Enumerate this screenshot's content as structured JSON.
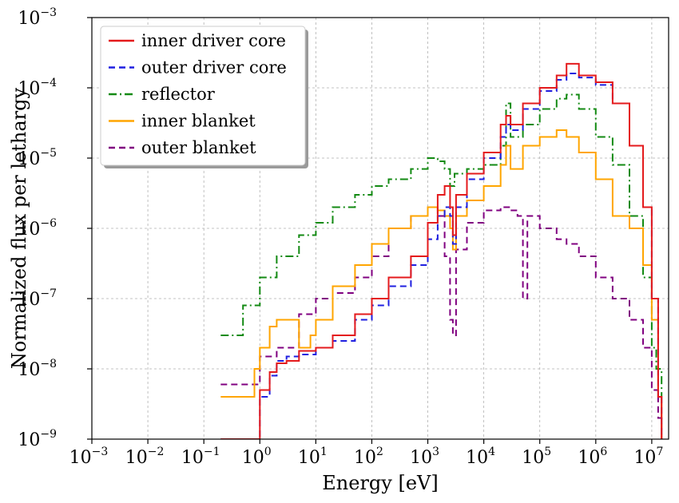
{
  "chart_data": {
    "type": "line",
    "title": "",
    "xlabel": "Energy [eV]",
    "ylabel": "Normalized flux per lethargy",
    "x_scale": "log",
    "y_scale": "log",
    "xlim": [
      0.001,
      20000000
    ],
    "ylim": [
      1e-09,
      0.001
    ],
    "grid": true,
    "legend_position": "top-left",
    "x_ticks": [
      {
        "value": 0.001,
        "base": "10",
        "exp": "−3"
      },
      {
        "value": 0.01,
        "base": "10",
        "exp": "−2"
      },
      {
        "value": 0.1,
        "base": "10",
        "exp": "−1"
      },
      {
        "value": 1,
        "base": "10",
        "exp": "0"
      },
      {
        "value": 10,
        "base": "10",
        "exp": "1"
      },
      {
        "value": 100,
        "base": "10",
        "exp": "2"
      },
      {
        "value": 1000,
        "base": "10",
        "exp": "3"
      },
      {
        "value": 10000,
        "base": "10",
        "exp": "4"
      },
      {
        "value": 100000,
        "base": "10",
        "exp": "5"
      },
      {
        "value": 1000000,
        "base": "10",
        "exp": "6"
      },
      {
        "value": 10000000,
        "base": "10",
        "exp": "7"
      }
    ],
    "y_ticks": [
      {
        "value": 1e-09,
        "base": "10",
        "exp": "−9"
      },
      {
        "value": 1e-08,
        "base": "10",
        "exp": "−8"
      },
      {
        "value": 1e-07,
        "base": "10",
        "exp": "−7"
      },
      {
        "value": 1e-06,
        "base": "10",
        "exp": "−6"
      },
      {
        "value": 1e-05,
        "base": "10",
        "exp": "−5"
      },
      {
        "value": 0.0001,
        "base": "10",
        "exp": "−4"
      },
      {
        "value": 0.001,
        "base": "10",
        "exp": "−3"
      }
    ],
    "series": [
      {
        "name": "inner driver core",
        "color": "#e41a1c",
        "dash": "solid",
        "x": [
          0.2,
          0.5,
          0.8,
          1,
          1.5,
          2,
          3,
          5,
          10,
          20,
          50,
          100,
          200,
          500,
          1000,
          1500,
          2000,
          2500,
          2800,
          3200,
          5000,
          10000,
          20000,
          25000,
          30000,
          50000,
          100000,
          200000,
          300000,
          500000,
          1000000,
          2000000,
          4000000,
          7000000,
          10000000,
          13000000,
          15000000
        ],
        "y": [
          1e-09,
          1e-09,
          1e-09,
          5e-09,
          9e-09,
          1.2e-08,
          1.3e-08,
          1.8e-08,
          2e-08,
          3e-08,
          6e-08,
          1e-07,
          2e-07,
          4e-07,
          1.2e-06,
          3e-06,
          4e-06,
          2e-06,
          8e-07,
          3e-06,
          6e-06,
          1.2e-05,
          3e-05,
          4e-05,
          3e-05,
          6e-05,
          0.0001,
          0.00015,
          0.00022,
          0.00015,
          0.00012,
          6e-05,
          1.5e-05,
          2e-06,
          1e-07,
          4e-09,
          1e-09
        ]
      },
      {
        "name": "outer driver core",
        "color": "#1f1fe0",
        "dash": "8,5",
        "x": [
          0.2,
          0.5,
          0.8,
          1,
          1.5,
          2,
          3,
          5,
          10,
          20,
          50,
          100,
          200,
          500,
          1000,
          1500,
          2000,
          2500,
          2800,
          3200,
          5000,
          10000,
          20000,
          25000,
          30000,
          50000,
          100000,
          200000,
          300000,
          500000,
          1000000,
          2000000,
          4000000,
          7000000,
          10000000,
          13000000,
          15000000
        ],
        "y": [
          1e-09,
          1e-09,
          1e-09,
          4e-09,
          8e-09,
          1.3e-08,
          1.5e-08,
          1.6e-08,
          2e-08,
          2.5e-08,
          5e-08,
          8e-08,
          1.5e-07,
          3e-07,
          7e-07,
          1.5e-06,
          2e-06,
          1.5e-06,
          6e-07,
          2e-06,
          5e-06,
          1e-05,
          2e-05,
          3e-05,
          2.5e-05,
          5e-05,
          9e-05,
          0.00013,
          0.00016,
          0.00014,
          0.00011,
          6e-05,
          1.5e-05,
          2e-06,
          1e-07,
          4e-09,
          1e-09
        ]
      },
      {
        "name": "reflector",
        "color": "#138a13",
        "dash": "10,4,2,4",
        "x": [
          0.2,
          0.3,
          0.5,
          1,
          2,
          5,
          10,
          20,
          50,
          100,
          200,
          500,
          1000,
          1500,
          2000,
          2500,
          3000,
          5000,
          10000,
          20000,
          25000,
          30000,
          50000,
          100000,
          200000,
          300000,
          500000,
          1000000,
          2000000,
          4000000,
          7000000,
          10000000,
          12000000,
          15000000
        ],
        "y": [
          3e-08,
          3e-08,
          8e-08,
          2e-07,
          4e-07,
          8e-07,
          1.2e-06,
          2e-06,
          3e-06,
          4e-06,
          5e-06,
          7e-06,
          1e-05,
          9e-06,
          7e-06,
          4e-06,
          6e-06,
          7e-06,
          8e-06,
          1.5e-05,
          6e-05,
          2e-05,
          3e-05,
          5e-05,
          7e-05,
          8e-05,
          5e-05,
          2e-05,
          8e-06,
          1.5e-06,
          2e-07,
          2e-08,
          1e-08,
          4e-09
        ]
      },
      {
        "name": "inner blanket",
        "color": "#ffa500",
        "dash": "solid",
        "x": [
          0.2,
          0.5,
          0.8,
          1,
          1.5,
          2,
          3,
          5,
          8,
          10,
          20,
          50,
          100,
          200,
          500,
          1000,
          1500,
          2000,
          2500,
          2800,
          3200,
          5000,
          10000,
          20000,
          25000,
          30000,
          50000,
          100000,
          200000,
          300000,
          500000,
          1000000,
          2000000,
          4000000,
          7000000,
          10000000,
          13000000,
          15000000
        ],
        "y": [
          4e-09,
          4e-09,
          1e-08,
          2e-08,
          4e-08,
          5e-08,
          5e-08,
          2e-08,
          3e-08,
          5e-08,
          1.5e-07,
          3e-07,
          6e-07,
          1e-06,
          1.5e-06,
          2e-06,
          1.8e-06,
          1.5e-06,
          1e-06,
          5e-07,
          1.5e-06,
          2.5e-06,
          4e-06,
          8e-06,
          1.5e-05,
          7e-06,
          1.5e-05,
          2e-05,
          2.5e-05,
          2e-05,
          1.2e-05,
          5e-06,
          1.5e-06,
          1e-06,
          3e-07,
          5e-08,
          4e-09,
          1e-09
        ]
      },
      {
        "name": "outer blanket",
        "color": "#800080",
        "dash": "8,5",
        "x": [
          0.2,
          0.5,
          1,
          2,
          5,
          10,
          20,
          50,
          100,
          200,
          500,
          1000,
          1500,
          2000,
          2500,
          2800,
          3200,
          5000,
          10000,
          20000,
          30000,
          40000,
          50000,
          60000,
          100000,
          200000,
          300000,
          500000,
          1000000,
          2000000,
          4000000,
          7000000,
          10000000,
          13000000,
          15000000
        ],
        "y": [
          6e-09,
          6e-09,
          1.5e-08,
          2e-08,
          6e-08,
          1e-07,
          1.2e-07,
          2e-07,
          4e-07,
          1e-06,
          1.5e-06,
          2e-06,
          1.5e-06,
          4e-07,
          5e-08,
          3e-08,
          5e-07,
          1.2e-06,
          1.8e-06,
          2e-06,
          1.8e-06,
          1.5e-06,
          1e-07,
          1.5e-06,
          1e-06,
          7e-07,
          6e-07,
          4e-07,
          2e-07,
          1e-07,
          5e-08,
          2e-08,
          5e-09,
          2e-09,
          1e-09
        ]
      }
    ]
  }
}
